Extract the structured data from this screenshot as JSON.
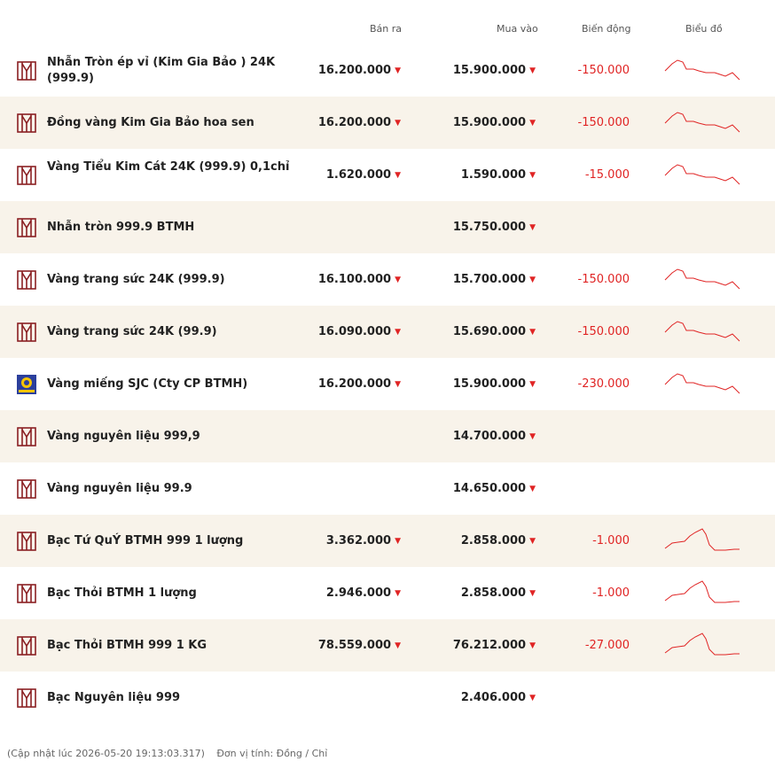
{
  "header": {
    "sell_label": "Bán ra",
    "buy_label": "Mua vào",
    "change_label": "Biến động",
    "chart_label": "Biểu đồ"
  },
  "colors": {
    "accent_red": "#e02424",
    "brand_maroon": "#8a1f22",
    "row_shade": "#f8f3ea",
    "sjc_blue": "#2b3f9c",
    "sjc_yellow": "#f6c400"
  },
  "rows": [
    {
      "name": "Nhẫn Tròn ép vỉ (Kim Gia Bảo ) 24K (999.9)",
      "logo": "btmh-logo-icon",
      "sell": "16.200.000",
      "sell_trend": "down",
      "buy": "15.900.000",
      "buy_trend": "down",
      "change": "-150.000",
      "spark": "gold"
    },
    {
      "name": "Đồng vàng Kim Gia Bảo hoa sen",
      "logo": "btmh-logo-icon",
      "sell": "16.200.000",
      "sell_trend": "down",
      "buy": "15.900.000",
      "buy_trend": "down",
      "change": "-150.000",
      "spark": "gold"
    },
    {
      "name": "Vàng Tiểu Kim Cát 24K (999.9) 0,1chỉ",
      "logo": "btmh-logo-icon",
      "sell": "1.620.000",
      "sell_trend": "down",
      "buy": "1.590.000",
      "buy_trend": "down",
      "change": "-15.000",
      "spark": "gold"
    },
    {
      "name": "Nhẫn tròn 999.9 BTMH",
      "logo": "btmh-logo-icon",
      "sell": "",
      "sell_trend": "",
      "buy": "15.750.000",
      "buy_trend": "down",
      "change": "",
      "spark": ""
    },
    {
      "name": "Vàng trang sức 24K (999.9)",
      "logo": "btmh-logo-icon",
      "sell": "16.100.000",
      "sell_trend": "down",
      "buy": "15.700.000",
      "buy_trend": "down",
      "change": "-150.000",
      "spark": "gold"
    },
    {
      "name": "Vàng trang sức 24K (99.9)",
      "logo": "btmh-logo-icon",
      "sell": "16.090.000",
      "sell_trend": "down",
      "buy": "15.690.000",
      "buy_trend": "down",
      "change": "-150.000",
      "spark": "gold"
    },
    {
      "name": "Vàng miếng SJC (Cty CP BTMH)",
      "logo": "sjc-logo-icon",
      "sell": "16.200.000",
      "sell_trend": "down",
      "buy": "15.900.000",
      "buy_trend": "down",
      "change": "-230.000",
      "spark": "gold"
    },
    {
      "name": "Vàng nguyên liệu 999,9",
      "logo": "btmh-logo-icon",
      "sell": "",
      "sell_trend": "",
      "buy": "14.700.000",
      "buy_trend": "down",
      "change": "",
      "spark": ""
    },
    {
      "name": "Vàng nguyên liệu 99.9",
      "logo": "btmh-logo-icon",
      "sell": "",
      "sell_trend": "",
      "buy": "14.650.000",
      "buy_trend": "down",
      "change": "",
      "spark": ""
    },
    {
      "name": "Bạc Tứ QuÝ BTMH 999 1 lượng",
      "logo": "btmh-logo-icon",
      "sell": "3.362.000",
      "sell_trend": "down",
      "buy": "2.858.000",
      "buy_trend": "down",
      "change": "-1.000",
      "spark": "silver"
    },
    {
      "name": "Bạc Thỏi BTMH 1 lượng",
      "logo": "btmh-logo-icon",
      "sell": "2.946.000",
      "sell_trend": "down",
      "buy": "2.858.000",
      "buy_trend": "down",
      "change": "-1.000",
      "spark": "silver"
    },
    {
      "name": "Bạc Thỏi BTMH 999 1 KG",
      "logo": "btmh-logo-icon",
      "sell": "78.559.000",
      "sell_trend": "down",
      "buy": "76.212.000",
      "buy_trend": "down",
      "change": "-27.000",
      "spark": "silver"
    },
    {
      "name": "Bạc Nguyên liệu 999",
      "logo": "btmh-logo-icon",
      "sell": "",
      "sell_trend": "",
      "buy": "2.406.000",
      "buy_trend": "down",
      "change": "",
      "spark": ""
    }
  ],
  "footer": {
    "updated": "(Cập nhật lúc 2026-05-20 19:13:03.317)",
    "unit": "Đơn vị tính: Đồng / Chỉ"
  }
}
